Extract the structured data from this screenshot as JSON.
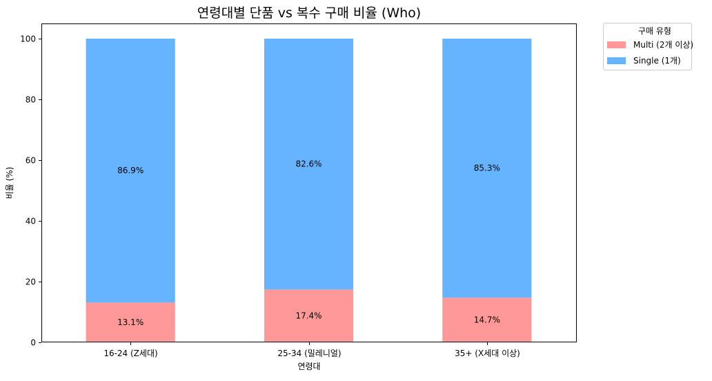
{
  "chart_data": {
    "type": "bar",
    "stacked": true,
    "title": "연령대별 단품 vs 복수 구매 비율 (Who)",
    "xlabel": "연령대",
    "ylabel": "비율 (%)",
    "ylim": [
      0,
      105
    ],
    "yticks": [
      0,
      20,
      40,
      60,
      80,
      100
    ],
    "grid": false,
    "categories": [
      "16-24 (Z세대)",
      "25-34 (밀레니얼)",
      "35+ (X세대 이상)"
    ],
    "series": [
      {
        "name": "Multi (2개 이상)",
        "values": [
          13.1,
          17.4,
          14.7
        ],
        "labels": [
          "13.1%",
          "17.4%",
          "14.7%"
        ],
        "color": "#ff9999"
      },
      {
        "name": "Single (1개)",
        "values": [
          86.9,
          82.6,
          85.3
        ],
        "labels": [
          "86.9%",
          "82.6%",
          "85.3%"
        ],
        "color": "#66b3ff"
      }
    ],
    "legend": {
      "title": "구매 유형",
      "placement": "outside-top-right"
    }
  }
}
